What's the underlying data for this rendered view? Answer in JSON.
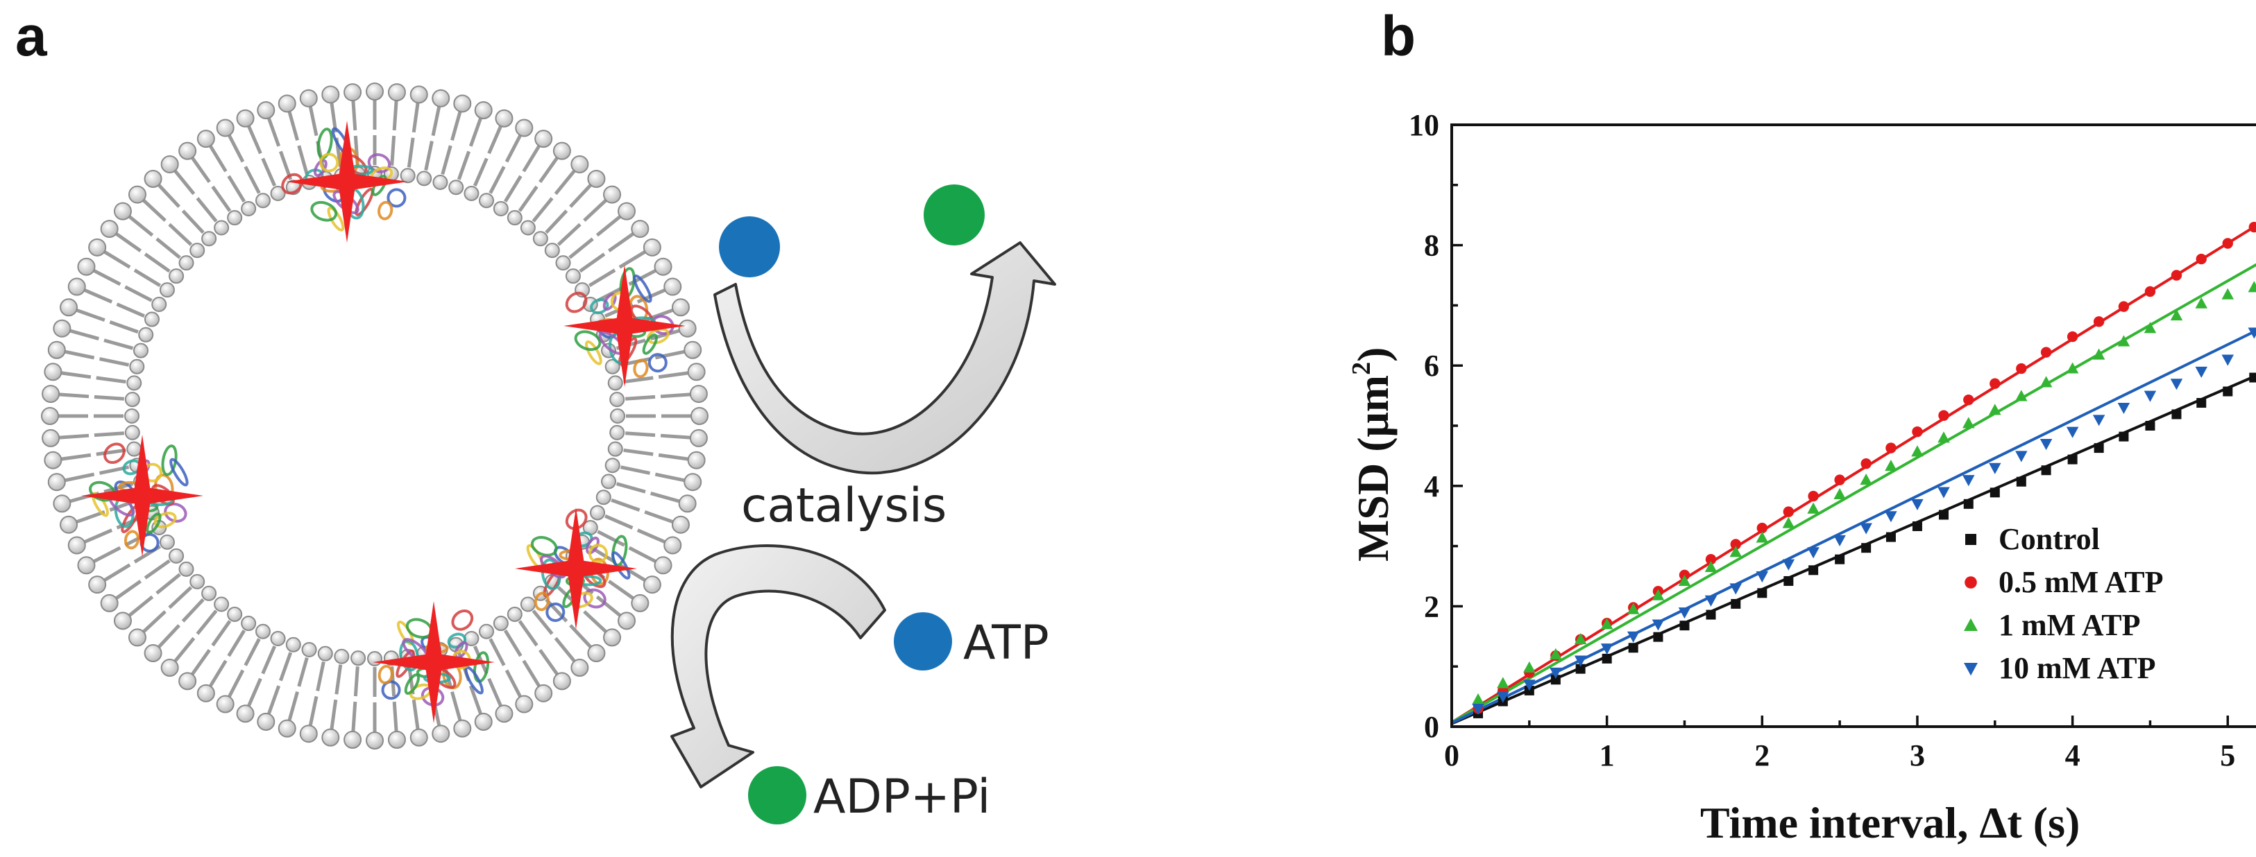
{
  "panel_a": {
    "letter": "a",
    "catalysis_label": "catalysis",
    "atp_label": "ATP",
    "adp_label": "ADP+Pi",
    "substrate_color": "#1a73b8",
    "product_color": "#16a34a",
    "star_color": "#ee2222"
  },
  "panel_b": {
    "letter": "b"
  },
  "chart_data": {
    "type": "scatter",
    "xlabel": "Time interval, Δt (s)",
    "ylabel_main": "MSD (μm",
    "ylabel_sup": "2",
    "ylabel_close": ")",
    "xlim": [
      0,
      5.2
    ],
    "ylim": [
      0,
      10
    ],
    "xticks": [
      0,
      1,
      2,
      3,
      4,
      5
    ],
    "yticks": [
      0,
      2,
      4,
      6,
      8,
      10
    ],
    "grid": false,
    "legend_position": "bottom-right",
    "series": [
      {
        "name": "Control",
        "color": "#111111",
        "marker": "square",
        "x": [
          0.17,
          0.33,
          0.5,
          0.67,
          0.83,
          1.0,
          1.17,
          1.33,
          1.5,
          1.67,
          1.83,
          2.0,
          2.17,
          2.33,
          2.5,
          2.67,
          2.83,
          3.0,
          3.17,
          3.33,
          3.5,
          3.67,
          3.83,
          4.0,
          4.17,
          4.33,
          4.5,
          4.67,
          4.83,
          5.0,
          5.17
        ],
        "y": [
          0.22,
          0.42,
          0.6,
          0.78,
          0.96,
          1.13,
          1.31,
          1.49,
          1.68,
          1.86,
          2.04,
          2.22,
          2.42,
          2.6,
          2.78,
          2.97,
          3.15,
          3.33,
          3.52,
          3.7,
          3.89,
          4.07,
          4.26,
          4.44,
          4.63,
          4.82,
          5.0,
          5.19,
          5.38,
          5.57,
          5.8
        ],
        "fit": [
          [
            0,
            0.05
          ],
          [
            5.2,
            5.85
          ]
        ]
      },
      {
        "name": "0.5 mM ATP",
        "color": "#e31a1c",
        "marker": "circle",
        "x": [
          0.17,
          0.33,
          0.5,
          0.67,
          0.83,
          1.0,
          1.17,
          1.33,
          1.5,
          1.67,
          1.83,
          2.0,
          2.17,
          2.33,
          2.5,
          2.67,
          2.83,
          3.0,
          3.17,
          3.33,
          3.5,
          3.67,
          3.83,
          4.0,
          4.17,
          4.33,
          4.5,
          4.67,
          4.83,
          5.0,
          5.17
        ],
        "y": [
          0.3,
          0.6,
          0.9,
          1.18,
          1.45,
          1.72,
          1.98,
          2.25,
          2.52,
          2.78,
          3.03,
          3.3,
          3.57,
          3.83,
          4.1,
          4.37,
          4.63,
          4.9,
          5.17,
          5.43,
          5.7,
          5.95,
          6.22,
          6.48,
          6.73,
          6.98,
          7.23,
          7.5,
          7.77,
          8.03,
          8.3
        ],
        "fit": [
          [
            0,
            0.07
          ],
          [
            5.2,
            8.35
          ]
        ]
      },
      {
        "name": "1 mM ATP",
        "color": "#33b533",
        "marker": "triangle-up",
        "x": [
          0.17,
          0.33,
          0.5,
          0.67,
          0.83,
          1.0,
          1.17,
          1.33,
          1.5,
          1.67,
          1.83,
          2.0,
          2.17,
          2.33,
          2.5,
          2.67,
          2.83,
          3.0,
          3.17,
          3.33,
          3.5,
          3.67,
          3.83,
          4.0,
          4.17,
          4.33,
          4.5,
          4.67,
          4.83,
          5.0,
          5.17
        ],
        "y": [
          0.45,
          0.72,
          0.98,
          1.2,
          1.45,
          1.7,
          1.95,
          2.18,
          2.42,
          2.65,
          2.9,
          3.14,
          3.38,
          3.62,
          3.86,
          4.1,
          4.33,
          4.57,
          4.8,
          5.04,
          5.26,
          5.49,
          5.72,
          5.95,
          6.18,
          6.4,
          6.62,
          6.83,
          7.03,
          7.18,
          7.3
        ],
        "fit": [
          [
            0,
            0.07
          ],
          [
            5.2,
            7.7
          ]
        ]
      },
      {
        "name": "10 mM ATP",
        "color": "#1f5fb8",
        "marker": "triangle-down",
        "x": [
          0.17,
          0.33,
          0.5,
          0.67,
          0.83,
          1.0,
          1.17,
          1.33,
          1.5,
          1.67,
          1.83,
          2.0,
          2.17,
          2.33,
          2.5,
          2.67,
          2.83,
          3.0,
          3.17,
          3.33,
          3.5,
          3.67,
          3.83,
          4.0,
          4.17,
          4.33,
          4.5,
          4.67,
          4.83,
          5.0,
          5.17
        ],
        "y": [
          0.3,
          0.5,
          0.7,
          0.9,
          1.1,
          1.3,
          1.5,
          1.7,
          1.9,
          2.1,
          2.3,
          2.5,
          2.7,
          2.9,
          3.1,
          3.3,
          3.5,
          3.7,
          3.9,
          4.1,
          4.3,
          4.5,
          4.7,
          4.9,
          5.1,
          5.3,
          5.5,
          5.7,
          5.9,
          6.1,
          6.55
        ],
        "fit": [
          [
            0,
            0.06
          ],
          [
            5.2,
            6.6
          ]
        ]
      }
    ]
  }
}
